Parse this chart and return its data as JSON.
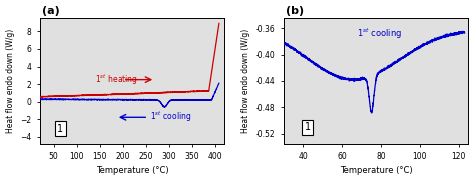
{
  "panel_a": {
    "label": "(a)",
    "xlabel": "Temperature (°C)",
    "ylabel": "Heat flow endo down (W/g)",
    "xlim": [
      20,
      420
    ],
    "ylim": [
      -4.8,
      9.5
    ],
    "xticks": [
      50,
      100,
      150,
      200,
      250,
      300,
      350,
      400
    ],
    "yticks": [
      -4,
      -2,
      0,
      2,
      4,
      6,
      8
    ],
    "cooling_color": "#0000cc",
    "heating_color": "#cc0000",
    "box_label": "1",
    "bg_color": "#e0e0e0"
  },
  "panel_b": {
    "label": "(b)",
    "xlabel": "Temperature (°C)",
    "ylabel": "Heat flow endo down (W/g)",
    "xlim": [
      30,
      125
    ],
    "ylim": [
      -0.535,
      -0.345
    ],
    "xticks": [
      40,
      60,
      80,
      100,
      120
    ],
    "yticks": [
      -0.52,
      -0.48,
      -0.44,
      -0.4,
      -0.36
    ],
    "cooling_color": "#0000cc",
    "box_label": "1",
    "bg_color": "#e0e0e0"
  }
}
